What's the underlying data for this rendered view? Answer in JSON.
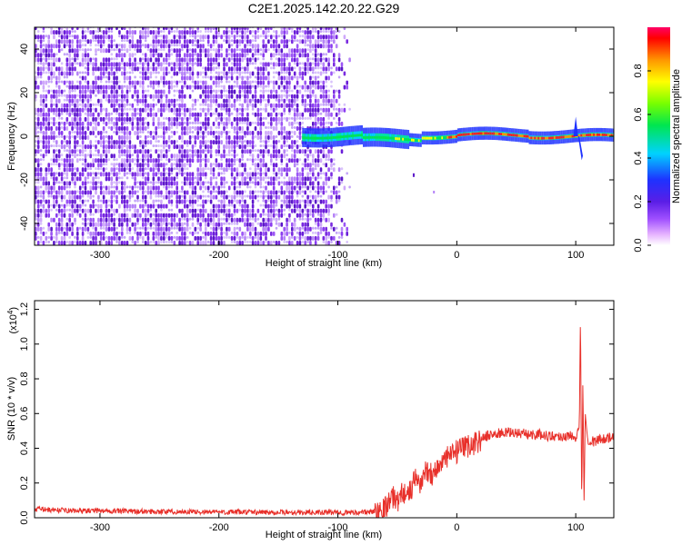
{
  "title": "C2E1.2025.142.20.22.G29",
  "colors": {
    "signal": "#e8302a",
    "background_noise": "#7a2be0"
  },
  "chart_data": [
    {
      "type": "heatmap",
      "xlabel": "Height of straight line (km)",
      "ylabel": "Frequency (Hz)",
      "xlim": [
        -355,
        132
      ],
      "ylim": [
        -50,
        50
      ],
      "xticks": [
        -300,
        -200,
        -100,
        0,
        100
      ],
      "xtick_labels": [
        "-300",
        "-200",
        "-100",
        "0",
        "100"
      ],
      "yticks": [
        -40,
        -20,
        0,
        20,
        40
      ],
      "ytick_labels": [
        "-40",
        "-20",
        "0",
        "20",
        "40"
      ],
      "colorbar": {
        "label": "Normalized spectral amplitude",
        "range": [
          0.0,
          1.0
        ],
        "ticks": [
          0.0,
          0.2,
          0.4,
          0.6,
          0.8
        ],
        "tick_labels": [
          "0.0",
          "0.2",
          "0.4",
          "0.6",
          "0.8"
        ],
        "colormap": "rainbow (white-magenta-violet-blue-cyan-green-yellow-orange-red)"
      },
      "features": {
        "noise_region_x": [
          -355,
          -90
        ],
        "signal_onset_x": -130,
        "signal_center_freq_hz": 0,
        "signal_spike_x": 100
      }
    },
    {
      "type": "line",
      "xlabel": "Height of straight line (km)",
      "ylabel": "SNR (10 * v/v)",
      "y_multiplier": "(x10",
      "y_multiplier_exp": "4",
      "y_multiplier_close": ")",
      "xlim": [
        -355,
        132
      ],
      "ylim": [
        0,
        1.25
      ],
      "xticks": [
        -300,
        -200,
        -100,
        0,
        100
      ],
      "xtick_labels": [
        "-300",
        "-200",
        "-100",
        "0",
        "100"
      ],
      "yticks": [
        0.0,
        0.2,
        0.4,
        0.6,
        0.8,
        1.0,
        1.2
      ],
      "ytick_labels": [
        "0.0",
        "0.2",
        "0.4",
        "0.6",
        "0.8",
        "1.0",
        "1.2"
      ],
      "series": [
        {
          "color": "#e8302a",
          "x": [
            -355,
            -340,
            -320,
            -300,
            -280,
            -260,
            -240,
            -220,
            -200,
            -180,
            -160,
            -140,
            -120,
            -100,
            -90,
            -80,
            -70,
            -60,
            -55,
            -50,
            -45,
            -40,
            -35,
            -30,
            -25,
            -20,
            -15,
            -10,
            -5,
            0,
            5,
            10,
            15,
            20,
            25,
            30,
            40,
            50,
            60,
            70,
            80,
            90,
            95,
            100,
            103,
            104,
            105,
            106,
            107,
            108,
            110,
            115,
            120,
            125,
            132
          ],
          "y": [
            0.05,
            0.045,
            0.04,
            0.04,
            0.038,
            0.036,
            0.035,
            0.034,
            0.033,
            0.032,
            0.031,
            0.031,
            0.03,
            0.03,
            0.03,
            0.03,
            0.035,
            0.06,
            0.12,
            0.1,
            0.15,
            0.14,
            0.22,
            0.2,
            0.28,
            0.25,
            0.3,
            0.33,
            0.36,
            0.38,
            0.39,
            0.42,
            0.43,
            0.45,
            0.47,
            0.48,
            0.49,
            0.49,
            0.48,
            0.48,
            0.47,
            0.47,
            0.47,
            0.47,
            0.52,
            1.2,
            0.05,
            0.8,
            0.1,
            0.6,
            0.45,
            0.44,
            0.45,
            0.46,
            0.46
          ]
        }
      ]
    }
  ]
}
